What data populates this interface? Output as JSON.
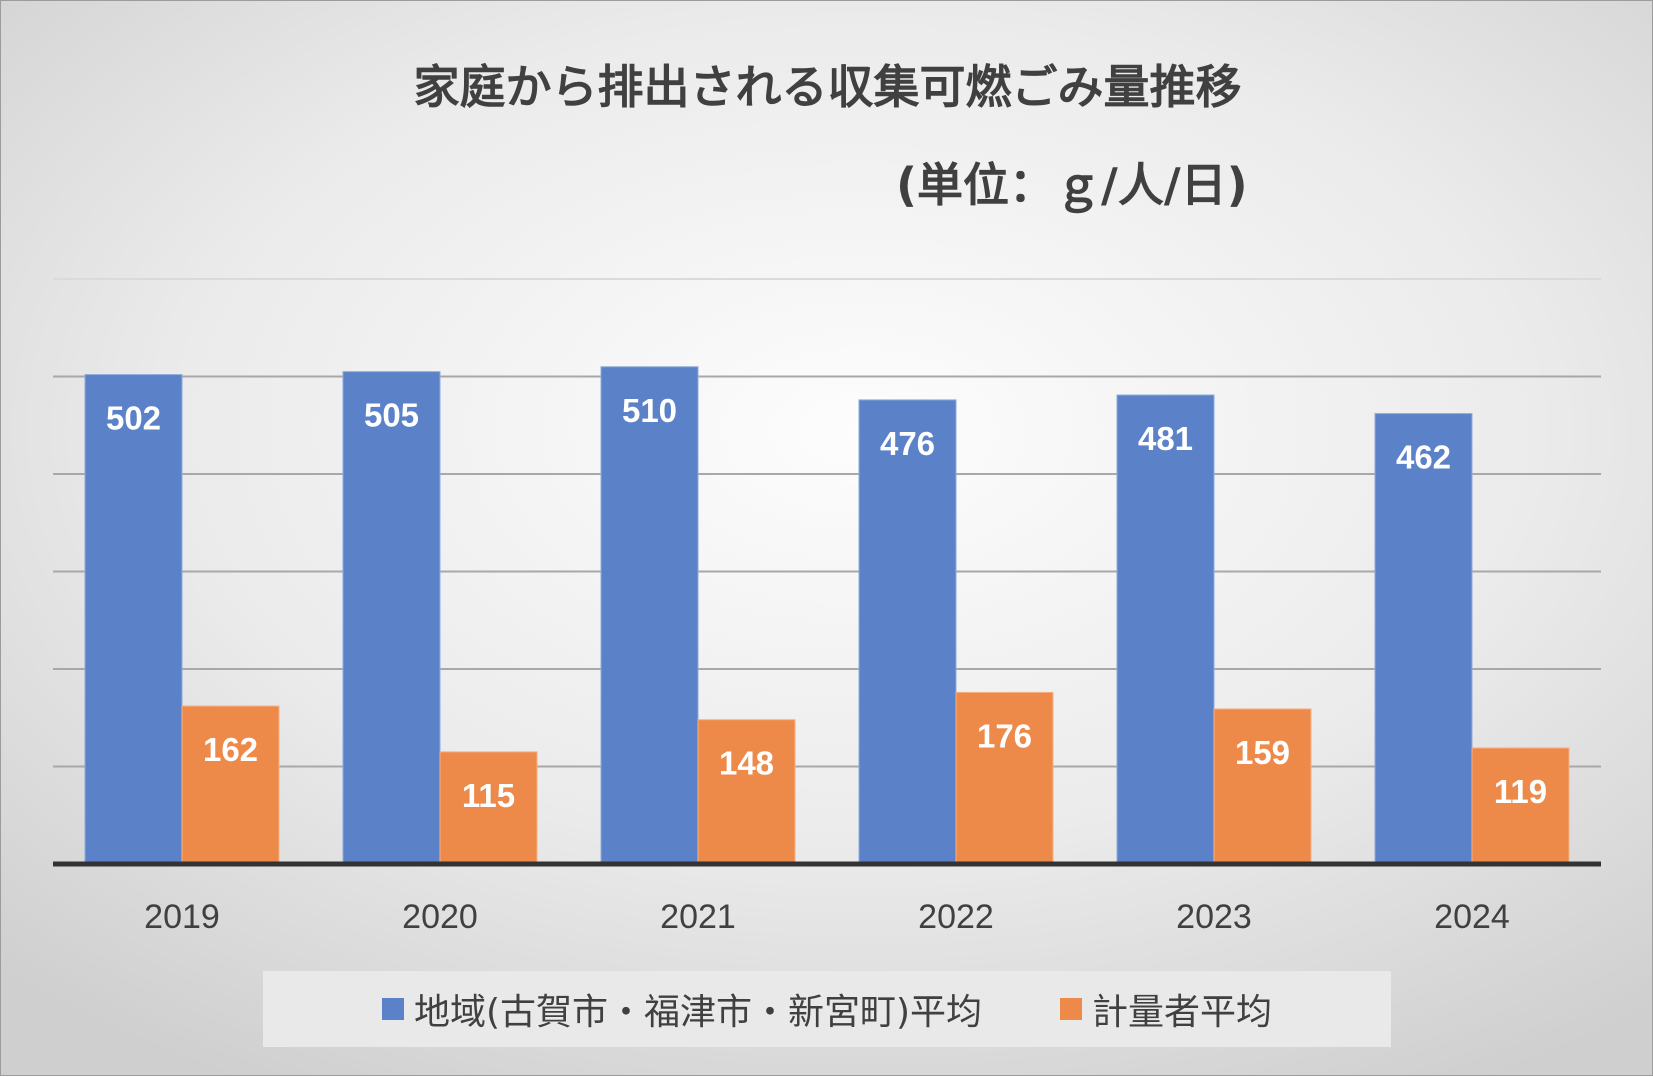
{
  "chart_data": {
    "type": "bar",
    "title": "家庭から排出される収集可燃ごみ量推移",
    "subtitle": "(単位：ｇ/人/日)",
    "categories": [
      "2019",
      "2020",
      "2021",
      "2022",
      "2023",
      "2024"
    ],
    "series": [
      {
        "name": "地域(古賀市・福津市・新宮町)平均",
        "color": "#5b82c8",
        "values": [
          502,
          505,
          510,
          476,
          481,
          462
        ]
      },
      {
        "name": "計量者平均",
        "color": "#ed8a4a",
        "values": [
          162,
          115,
          148,
          176,
          159,
          119
        ]
      }
    ],
    "ylim": [
      0,
      600
    ],
    "y_axis_labels_shown": false,
    "grid": true,
    "data_labels": true,
    "legend_position": "bottom"
  }
}
